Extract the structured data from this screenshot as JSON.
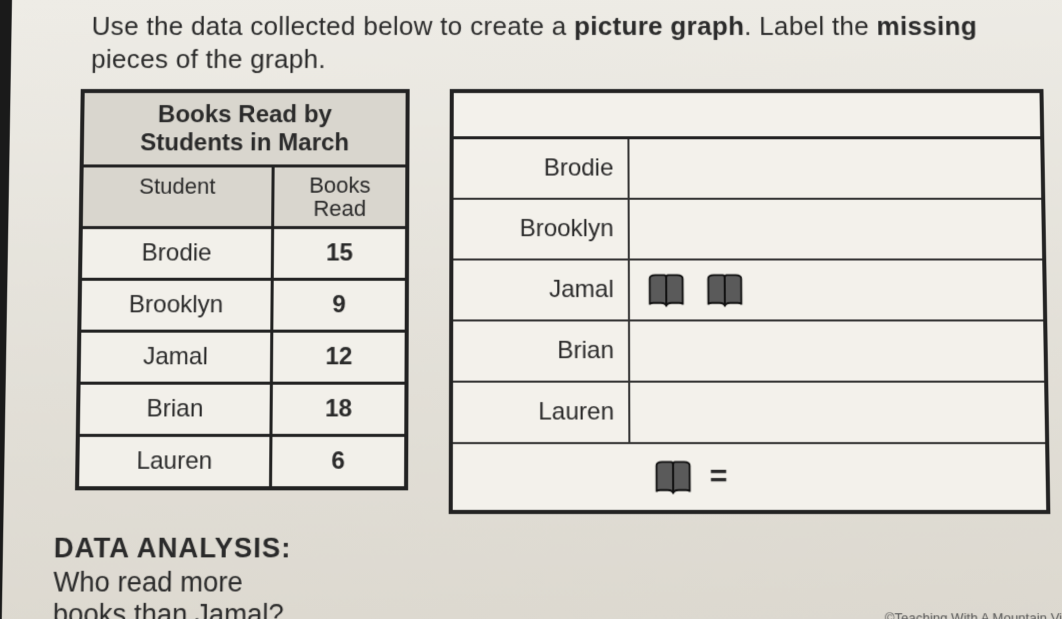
{
  "instruction": {
    "pre": "Use the data collected below to create a ",
    "bold1": "picture graph",
    "mid": ". Label the ",
    "bold2": "missing",
    "post": " pieces of the graph."
  },
  "data_table": {
    "title_line1": "Books Read by",
    "title_line2": "Students in March",
    "col1_header": "Student",
    "col2_header_l1": "Books",
    "col2_header_l2": "Read",
    "rows": [
      {
        "student": "Brodie",
        "books": "15"
      },
      {
        "student": "Brooklyn",
        "books": "9"
      },
      {
        "student": "Jamal",
        "books": "12"
      },
      {
        "student": "Brian",
        "books": "18"
      },
      {
        "student": "Lauren",
        "books": "6"
      }
    ]
  },
  "pictograph": {
    "rows": [
      {
        "label": "Brodie",
        "book_count": 0
      },
      {
        "label": "Brooklyn",
        "book_count": 0
      },
      {
        "label": "Jamal",
        "book_count": 2
      },
      {
        "label": "Brian",
        "book_count": 0
      },
      {
        "label": "Lauren",
        "book_count": 0
      }
    ],
    "key_equals": "=",
    "icon": {
      "fill": "#5a5a5a",
      "stroke": "#111111"
    }
  },
  "analysis": {
    "header": "DATA ANALYSIS:",
    "question_l1": "Who read more",
    "question_l2": "books than Jamal?"
  },
  "footer": "©Teaching With A Mountain Vi"
}
